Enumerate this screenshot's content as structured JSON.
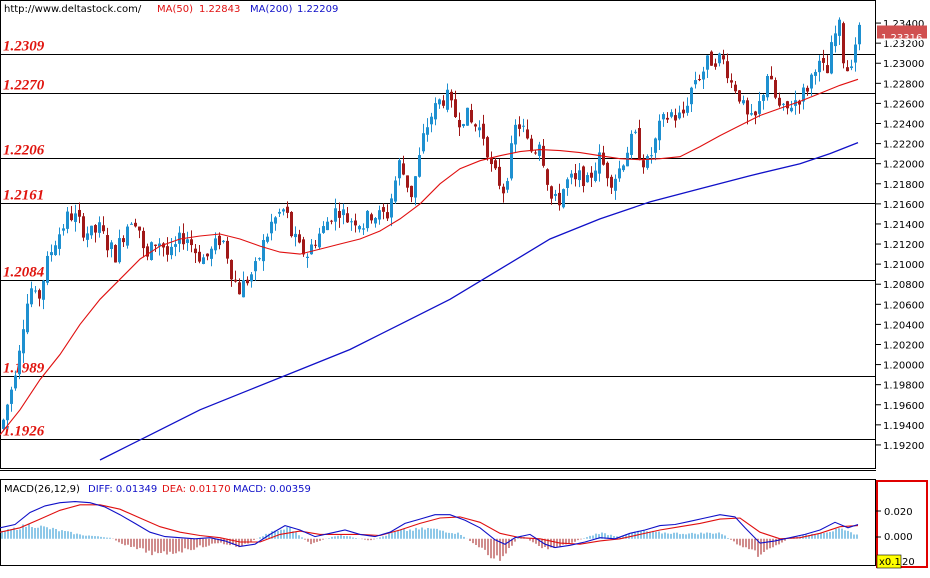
{
  "header": {
    "url": "http://www.deltastock.com/",
    "ma50_label": "MA(50)",
    "ma50_value": "1.22843",
    "ma200_label": "MA(200)",
    "ma200_value": "1.22209"
  },
  "colors": {
    "bull": "#1e90d0",
    "bear": "#a01818",
    "ma50": "#e01010",
    "ma200": "#1010c8",
    "level_text": "#e0140e",
    "current_price_bg": "#d05050",
    "macd_border": "#e00000",
    "diff_line": "#1010c8",
    "dea_line": "#e01010"
  },
  "price_label": "1.23316",
  "macd": {
    "title": "MACD(26,12,9)",
    "diff_label": "DIFF: 0.01349",
    "dea_label": "DEA: 0.01170",
    "macd_label": "MACD: 0.00359",
    "ticks": [
      "0.020",
      "0.000"
    ],
    "scale_badge": "x0.1",
    "bottom_tick": "20"
  },
  "chart_data": {
    "type": "candlestick",
    "ylim": [
      1.1905,
      1.2355
    ],
    "y_ticks": [
      "1.23400",
      "1.23200",
      "1.23000",
      "1.22800",
      "1.22600",
      "1.22400",
      "1.22200",
      "1.22000",
      "1.21800",
      "1.21600",
      "1.21400",
      "1.21200",
      "1.21000",
      "1.20800",
      "1.20600",
      "1.20400",
      "1.20200",
      "1.20000",
      "1.19800",
      "1.19600",
      "1.19400",
      "1.19200"
    ],
    "current_price": 1.23316,
    "levels": [
      {
        "label": "1.2309",
        "value": 1.2309
      },
      {
        "label": "1.2270",
        "value": 1.227
      },
      {
        "label": "1.2206",
        "value": 1.2206
      },
      {
        "label": "1.2161",
        "value": 1.2161
      },
      {
        "label": "1.2084",
        "value": 1.2084
      },
      {
        "label": "1.1989",
        "value": 1.1989
      },
      {
        "label": "1.1926",
        "value": 1.1926
      }
    ],
    "price_path": [
      [
        0,
        1.1936
      ],
      [
        6,
        1.196
      ],
      [
        12,
        1.1985
      ],
      [
        18,
        1.202
      ],
      [
        24,
        1.2055
      ],
      [
        30,
        1.2075
      ],
      [
        36,
        1.206
      ],
      [
        44,
        1.2095
      ],
      [
        52,
        1.212
      ],
      [
        60,
        1.2135
      ],
      [
        68,
        1.215
      ],
      [
        75,
        1.2145
      ],
      [
        82,
        1.2135
      ],
      [
        90,
        1.213
      ],
      [
        98,
        1.2135
      ],
      [
        106,
        1.212
      ],
      [
        114,
        1.211
      ],
      [
        120,
        1.2125
      ],
      [
        126,
        1.214
      ],
      [
        132,
        1.215
      ],
      [
        138,
        1.2135
      ],
      [
        144,
        1.21
      ],
      [
        150,
        1.2115
      ],
      [
        156,
        1.2125
      ],
      [
        162,
        1.2118
      ],
      [
        168,
        1.2105
      ],
      [
        176,
        1.212
      ],
      [
        184,
        1.213
      ],
      [
        190,
        1.212
      ],
      [
        196,
        1.211
      ],
      [
        204,
        1.2105
      ],
      [
        212,
        1.2115
      ],
      [
        220,
        1.2128
      ],
      [
        226,
        1.211
      ],
      [
        232,
        1.2085
      ],
      [
        238,
        1.2075
      ],
      [
        246,
        1.2085
      ],
      [
        254,
        1.2095
      ],
      [
        262,
        1.212
      ],
      [
        270,
        1.214
      ],
      [
        278,
        1.215
      ],
      [
        284,
        1.2155
      ],
      [
        290,
        1.213
      ],
      [
        298,
        1.2115
      ],
      [
        306,
        1.211
      ],
      [
        314,
        1.2125
      ],
      [
        322,
        1.2135
      ],
      [
        330,
        1.215
      ],
      [
        338,
        1.2155
      ],
      [
        346,
        1.2145
      ],
      [
        354,
        1.2145
      ],
      [
        362,
        1.214
      ],
      [
        370,
        1.215
      ],
      [
        378,
        1.2148
      ],
      [
        386,
        1.215
      ],
      [
        392,
        1.2175
      ],
      [
        398,
        1.22
      ],
      [
        404,
        1.2185
      ],
      [
        410,
        1.217
      ],
      [
        416,
        1.2195
      ],
      [
        422,
        1.2225
      ],
      [
        428,
        1.2245
      ],
      [
        434,
        1.2255
      ],
      [
        440,
        1.2265
      ],
      [
        446,
        1.2265
      ],
      [
        452,
        1.225
      ],
      [
        458,
        1.2245
      ],
      [
        464,
        1.225
      ],
      [
        470,
        1.224
      ],
      [
        478,
        1.2235
      ],
      [
        484,
        1.2225
      ],
      [
        490,
        1.2195
      ],
      [
        496,
        1.2185
      ],
      [
        502,
        1.2175
      ],
      [
        508,
        1.22
      ],
      [
        514,
        1.2235
      ],
      [
        520,
        1.224
      ],
      [
        526,
        1.222
      ],
      [
        532,
        1.221
      ],
      [
        538,
        1.2225
      ],
      [
        544,
        1.2195
      ],
      [
        550,
        1.2165
      ],
      [
        556,
        1.216
      ],
      [
        562,
        1.2175
      ],
      [
        568,
        1.2185
      ],
      [
        574,
        1.218
      ],
      [
        580,
        1.219
      ],
      [
        586,
        1.218
      ],
      [
        592,
        1.2195
      ],
      [
        598,
        1.2205
      ],
      [
        604,
        1.2195
      ],
      [
        610,
        1.2185
      ],
      [
        616,
        1.219
      ],
      [
        622,
        1.2205
      ],
      [
        628,
        1.222
      ],
      [
        634,
        1.2225
      ],
      [
        640,
        1.2205
      ],
      [
        646,
        1.22
      ],
      [
        652,
        1.2215
      ],
      [
        658,
        1.2235
      ],
      [
        664,
        1.2245
      ],
      [
        670,
        1.225
      ],
      [
        676,
        1.2245
      ],
      [
        682,
        1.225
      ],
      [
        688,
        1.227
      ],
      [
        694,
        1.2285
      ],
      [
        700,
        1.229
      ],
      [
        706,
        1.23
      ],
      [
        712,
        1.2305
      ],
      [
        718,
        1.2305
      ],
      [
        724,
        1.23
      ],
      [
        730,
        1.228
      ],
      [
        736,
        1.2275
      ],
      [
        742,
        1.2255
      ],
      [
        748,
        1.224
      ],
      [
        754,
        1.2245
      ],
      [
        760,
        1.2265
      ],
      [
        766,
        1.229
      ],
      [
        772,
        1.227
      ],
      [
        778,
        1.2255
      ],
      [
        784,
        1.225
      ],
      [
        790,
        1.226
      ],
      [
        796,
        1.2265
      ],
      [
        802,
        1.227
      ],
      [
        808,
        1.228
      ],
      [
        814,
        1.23
      ],
      [
        820,
        1.2295
      ],
      [
        826,
        1.229
      ],
      [
        832,
        1.2325
      ],
      [
        838,
        1.2335
      ],
      [
        844,
        1.229
      ],
      [
        850,
        1.2305
      ],
      [
        855,
        1.2325
      ],
      [
        858,
        1.2332
      ]
    ],
    "ma50_path": [
      [
        0,
        1.193
      ],
      [
        20,
        1.1955
      ],
      [
        40,
        1.1985
      ],
      [
        60,
        1.201
      ],
      [
        80,
        1.204
      ],
      [
        100,
        1.2065
      ],
      [
        120,
        1.2085
      ],
      [
        140,
        1.2105
      ],
      [
        160,
        1.2118
      ],
      [
        180,
        1.2125
      ],
      [
        200,
        1.2128
      ],
      [
        220,
        1.213
      ],
      [
        240,
        1.2125
      ],
      [
        260,
        1.2118
      ],
      [
        280,
        1.2112
      ],
      [
        300,
        1.211
      ],
      [
        320,
        1.2115
      ],
      [
        340,
        1.212
      ],
      [
        360,
        1.2125
      ],
      [
        380,
        1.2133
      ],
      [
        400,
        1.2145
      ],
      [
        420,
        1.216
      ],
      [
        440,
        1.218
      ],
      [
        460,
        1.2195
      ],
      [
        480,
        1.2203
      ],
      [
        500,
        1.2208
      ],
      [
        520,
        1.2212
      ],
      [
        540,
        1.2214
      ],
      [
        560,
        1.2213
      ],
      [
        580,
        1.2211
      ],
      [
        600,
        1.2208
      ],
      [
        620,
        1.2205
      ],
      [
        640,
        1.2204
      ],
      [
        660,
        1.2205
      ],
      [
        680,
        1.2207
      ],
      [
        700,
        1.2217
      ],
      [
        720,
        1.2228
      ],
      [
        740,
        1.2238
      ],
      [
        760,
        1.2248
      ],
      [
        780,
        1.2255
      ],
      [
        800,
        1.2262
      ],
      [
        820,
        1.227
      ],
      [
        840,
        1.2278
      ],
      [
        858,
        1.2284
      ]
    ],
    "ma200_path": [
      [
        100,
        1.1905
      ],
      [
        150,
        1.193
      ],
      [
        200,
        1.1955
      ],
      [
        250,
        1.1975
      ],
      [
        300,
        1.1995
      ],
      [
        350,
        1.2015
      ],
      [
        400,
        1.204
      ],
      [
        450,
        1.2065
      ],
      [
        500,
        1.2095
      ],
      [
        550,
        1.2125
      ],
      [
        600,
        1.2145
      ],
      [
        650,
        1.2162
      ],
      [
        700,
        1.2175
      ],
      [
        750,
        1.2188
      ],
      [
        800,
        1.22
      ],
      [
        830,
        1.221
      ],
      [
        858,
        1.2221
      ]
    ],
    "macd_ylim": [
      -0.024,
      0.04
    ],
    "diff_path": [
      [
        0,
        0.01
      ],
      [
        15,
        0.013
      ],
      [
        30,
        0.024
      ],
      [
        45,
        0.03
      ],
      [
        60,
        0.033
      ],
      [
        75,
        0.034
      ],
      [
        90,
        0.033
      ],
      [
        105,
        0.029
      ],
      [
        120,
        0.022
      ],
      [
        135,
        0.014
      ],
      [
        150,
        0.006
      ],
      [
        165,
        0.002
      ],
      [
        180,
        0.001
      ],
      [
        195,
        0.0
      ],
      [
        210,
        0.001
      ],
      [
        225,
        -0.002
      ],
      [
        240,
        -0.007
      ],
      [
        255,
        -0.005
      ],
      [
        270,
        0.004
      ],
      [
        285,
        0.012
      ],
      [
        300,
        0.008
      ],
      [
        315,
        0.002
      ],
      [
        330,
        0.005
      ],
      [
        345,
        0.008
      ],
      [
        360,
        0.004
      ],
      [
        375,
        0.002
      ],
      [
        390,
        0.006
      ],
      [
        405,
        0.014
      ],
      [
        420,
        0.018
      ],
      [
        435,
        0.022
      ],
      [
        450,
        0.022
      ],
      [
        465,
        0.017
      ],
      [
        480,
        0.01
      ],
      [
        495,
        -0.001
      ],
      [
        505,
        -0.005
      ],
      [
        515,
        0.001
      ],
      [
        530,
        0.004
      ],
      [
        545,
        -0.005
      ],
      [
        555,
        -0.008
      ],
      [
        570,
        -0.006
      ],
      [
        585,
        -0.003
      ],
      [
        600,
        0.001
      ],
      [
        615,
        0.0
      ],
      [
        630,
        0.005
      ],
      [
        645,
        0.008
      ],
      [
        660,
        0.012
      ],
      [
        675,
        0.013
      ],
      [
        690,
        0.016
      ],
      [
        705,
        0.019
      ],
      [
        720,
        0.022
      ],
      [
        735,
        0.02
      ],
      [
        745,
        0.01
      ],
      [
        760,
        -0.004
      ],
      [
        775,
        -0.002
      ],
      [
        790,
        0.001
      ],
      [
        805,
        0.004
      ],
      [
        820,
        0.008
      ],
      [
        835,
        0.015
      ],
      [
        848,
        0.01
      ],
      [
        858,
        0.013
      ]
    ],
    "dea_path": [
      [
        0,
        0.006
      ],
      [
        20,
        0.01
      ],
      [
        40,
        0.018
      ],
      [
        60,
        0.026
      ],
      [
        80,
        0.031
      ],
      [
        100,
        0.031
      ],
      [
        120,
        0.027
      ],
      [
        140,
        0.019
      ],
      [
        160,
        0.011
      ],
      [
        180,
        0.006
      ],
      [
        200,
        0.003
      ],
      [
        220,
        0.001
      ],
      [
        240,
        -0.003
      ],
      [
        260,
        -0.003
      ],
      [
        280,
        0.004
      ],
      [
        300,
        0.007
      ],
      [
        320,
        0.004
      ],
      [
        340,
        0.004
      ],
      [
        360,
        0.004
      ],
      [
        380,
        0.003
      ],
      [
        400,
        0.008
      ],
      [
        420,
        0.014
      ],
      [
        440,
        0.019
      ],
      [
        460,
        0.02
      ],
      [
        480,
        0.015
      ],
      [
        500,
        0.005
      ],
      [
        520,
        0.001
      ],
      [
        540,
        0.0
      ],
      [
        560,
        -0.004
      ],
      [
        580,
        -0.005
      ],
      [
        600,
        -0.002
      ],
      [
        620,
        0.0
      ],
      [
        640,
        0.004
      ],
      [
        660,
        0.008
      ],
      [
        680,
        0.011
      ],
      [
        700,
        0.014
      ],
      [
        720,
        0.018
      ],
      [
        740,
        0.019
      ],
      [
        760,
        0.006
      ],
      [
        780,
        0.0
      ],
      [
        800,
        0.001
      ],
      [
        820,
        0.005
      ],
      [
        840,
        0.011
      ],
      [
        858,
        0.012
      ]
    ],
    "hist_amplitude": [
      [
        0,
        0.006
      ],
      [
        30,
        0.014
      ],
      [
        50,
        0.01
      ],
      [
        80,
        0.004
      ],
      [
        110,
        0.001
      ],
      [
        130,
        -0.008
      ],
      [
        160,
        -0.016
      ],
      [
        190,
        -0.01
      ],
      [
        220,
        -0.004
      ],
      [
        240,
        -0.008
      ],
      [
        270,
        0.006
      ],
      [
        290,
        0.011
      ],
      [
        310,
        -0.005
      ],
      [
        340,
        0.004
      ],
      [
        370,
        -0.002
      ],
      [
        400,
        0.008
      ],
      [
        430,
        0.01
      ],
      [
        460,
        0.005
      ],
      [
        490,
        -0.016
      ],
      [
        500,
        -0.022
      ],
      [
        520,
        0.004
      ],
      [
        545,
        -0.01
      ],
      [
        565,
        -0.006
      ],
      [
        600,
        0.006
      ],
      [
        620,
        0.002
      ],
      [
        640,
        0.008
      ],
      [
        660,
        0.006
      ],
      [
        690,
        0.005
      ],
      [
        720,
        0.006
      ],
      [
        745,
        -0.01
      ],
      [
        760,
        -0.016
      ],
      [
        790,
        0.001
      ],
      [
        820,
        0.006
      ],
      [
        840,
        0.009
      ],
      [
        858,
        0.004
      ]
    ]
  }
}
